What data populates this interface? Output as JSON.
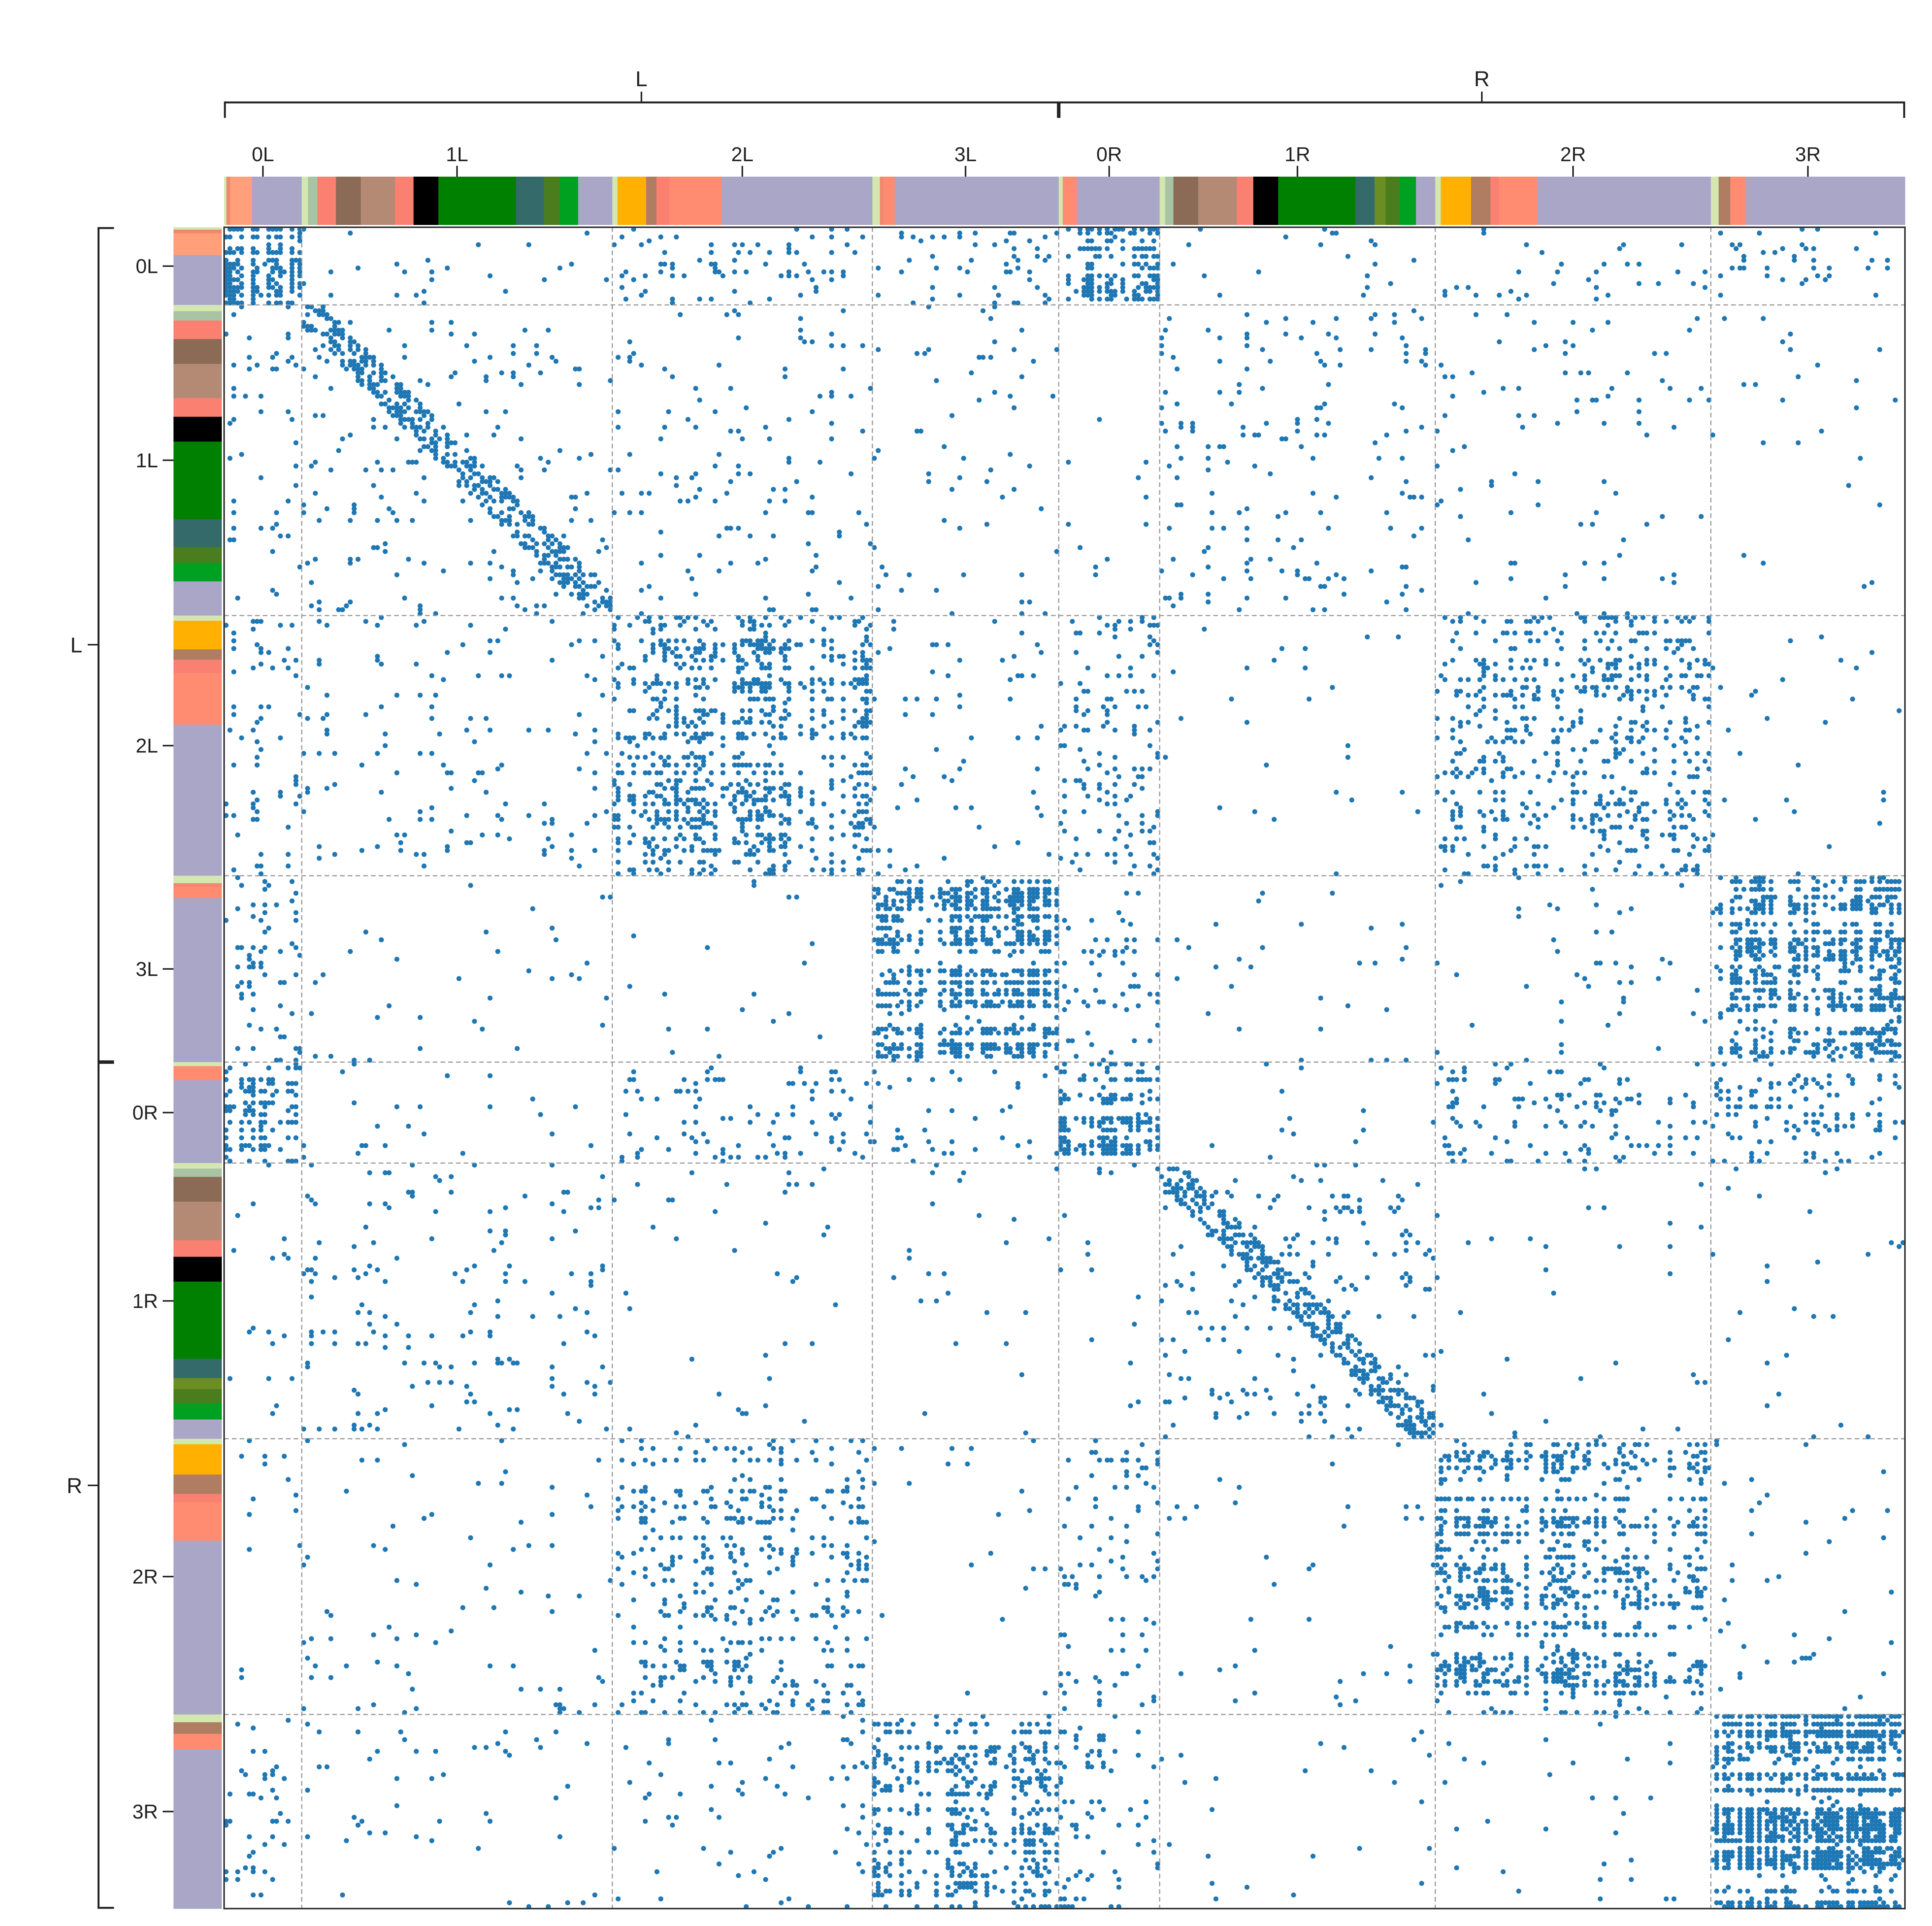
{
  "chart_data": {
    "type": "heatmap",
    "subtype": "binarized adjacency matrix (scatter of connections)",
    "title": "",
    "xlabel": "",
    "ylabel": "",
    "hemispheres": [
      {
        "label": "L",
        "blocks": [
          "0L",
          "1L",
          "2L",
          "3L"
        ]
      },
      {
        "label": "R",
        "blocks": [
          "0R",
          "1R",
          "2R",
          "3R"
        ]
      }
    ],
    "blocks": [
      {
        "label": "0L",
        "size": 20
      },
      {
        "label": "1L",
        "size": 80
      },
      {
        "label": "2L",
        "size": 67
      },
      {
        "label": "3L",
        "size": 48
      },
      {
        "label": "0R",
        "size": 26
      },
      {
        "label": "1R",
        "size": 71
      },
      {
        "label": "2R",
        "size": 71
      },
      {
        "label": "3R",
        "size": 50
      }
    ],
    "total_nodes": 433,
    "dot_color": "#1f77b4",
    "grid": {
      "style": "dashed",
      "color": "#9a9a9a"
    },
    "block_density_matrix": [
      [
        0.42,
        0.02,
        0.08,
        0.06,
        0.3,
        0.01,
        0.04,
        0.05
      ],
      [
        0.03,
        0.1,
        0.03,
        0.02,
        0.01,
        0.04,
        0.02,
        0.01
      ],
      [
        0.08,
        0.03,
        0.22,
        0.02,
        0.08,
        0.01,
        0.14,
        0.01
      ],
      [
        0.08,
        0.01,
        0.01,
        0.38,
        0.06,
        0.01,
        0.01,
        0.28
      ],
      [
        0.25,
        0.02,
        0.07,
        0.02,
        0.35,
        0.01,
        0.1,
        0.09
      ],
      [
        0.01,
        0.04,
        0.01,
        0.01,
        0.01,
        0.1,
        0.01,
        0.01
      ],
      [
        0.02,
        0.02,
        0.12,
        0.01,
        0.06,
        0.01,
        0.24,
        0.01
      ],
      [
        0.06,
        0.01,
        0.02,
        0.22,
        0.07,
        0.01,
        0.01,
        0.45
      ]
    ],
    "cell_type_colors": [
      "#d4e7b0",
      "#f08a6f",
      "#ffa07a",
      "#a9c4a4",
      "#8b6b55",
      "#b48a74",
      "#fa8072",
      "#000000",
      "#008000",
      "#356a6a",
      "#4a7d1e",
      "#6b8e23",
      "#00a020",
      "#ffb000",
      "#b07d62",
      "#ff8c70",
      "#aaa6c8"
    ],
    "cell_type_segments": {
      "0L": [
        [
          0.03,
          0
        ],
        [
          0.05,
          1
        ],
        [
          0.28,
          2
        ],
        [
          0.64,
          16
        ]
      ],
      "1L": [
        [
          0.02,
          0
        ],
        [
          0.03,
          3
        ],
        [
          0.06,
          6
        ],
        [
          0.08,
          4
        ],
        [
          0.11,
          5
        ],
        [
          0.06,
          6
        ],
        [
          0.08,
          7
        ],
        [
          0.25,
          8
        ],
        [
          0.09,
          9
        ],
        [
          0.05,
          10
        ],
        [
          0.06,
          12
        ],
        [
          0.11,
          16
        ]
      ],
      "2L": [
        [
          0.02,
          0
        ],
        [
          0.11,
          13
        ],
        [
          0.04,
          14
        ],
        [
          0.05,
          6
        ],
        [
          0.2,
          15
        ],
        [
          0.58,
          16
        ]
      ],
      "3L": [
        [
          0.04,
          0
        ],
        [
          0.02,
          1
        ],
        [
          0.06,
          15
        ],
        [
          0.88,
          16
        ]
      ],
      "0R": [
        [
          0.04,
          0
        ],
        [
          0.14,
          15
        ],
        [
          0.82,
          16
        ]
      ],
      "1R": [
        [
          0.02,
          0
        ],
        [
          0.03,
          3
        ],
        [
          0.09,
          4
        ],
        [
          0.14,
          5
        ],
        [
          0.06,
          6
        ],
        [
          0.09,
          7
        ],
        [
          0.28,
          8
        ],
        [
          0.07,
          9
        ],
        [
          0.04,
          11
        ],
        [
          0.05,
          10
        ],
        [
          0.06,
          12
        ],
        [
          0.07,
          16
        ]
      ],
      "2R": [
        [
          0.02,
          0
        ],
        [
          0.11,
          13
        ],
        [
          0.07,
          14
        ],
        [
          0.03,
          6
        ],
        [
          0.14,
          15
        ],
        [
          0.63,
          16
        ]
      ],
      "3R": [
        [
          0.04,
          0
        ],
        [
          0.06,
          14
        ],
        [
          0.08,
          15
        ],
        [
          0.82,
          16
        ]
      ]
    }
  }
}
